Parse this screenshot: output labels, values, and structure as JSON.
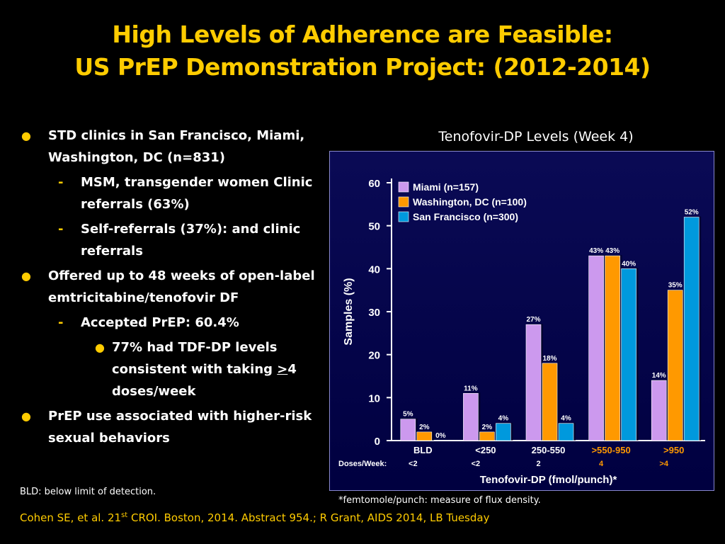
{
  "slide": {
    "title_line1": "High Levels of Adherence are Feasible:",
    "title_line2": "US PrEP Demonstration Project: (2012-2014)",
    "bullets": {
      "b1": "STD clinics in San Francisco, Miami, Washington, DC (n=831)",
      "b1_sub1": "MSM, transgender women Clinic referrals (63%)",
      "b1_sub2": "Self-referrals (37%): and clinic referrals",
      "b2": "Offered up to 48 weeks of open-label emtricitabine/tenofovir DF",
      "b2_sub1": "Accepted PrEP: 60.4%",
      "b2_subsub_pre": "77% had TDF-DP levels consistent with taking ",
      "b2_subsub_underlined": ">",
      "b2_subsub_post": "4 doses/week",
      "b3": "PrEP use associated  with higher-risk sexual behaviors"
    },
    "marker_bullet": "●",
    "marker_dash": "-",
    "bld_note": "BLD: below limit of detection.",
    "flux_note": "*femtomole/punch: measure of flux density.",
    "citation_pre": "Cohen SE, et al. 21",
    "citation_sup": "st",
    "citation_post": " CROI. Boston, 2014. Abstract 954.; R Grant, AIDS 2014, LB Tuesday"
  },
  "chart_data": {
    "type": "bar",
    "title": "Tenofovir-DP Levels (Week 4)",
    "xlabel": "Tenofovir-DP (fmol/punch)*",
    "ylabel": "Samples (%)",
    "ylim": [
      0,
      60
    ],
    "yticks": [
      0,
      10,
      20,
      30,
      40,
      50,
      60
    ],
    "legend_position": "top-left",
    "categories": [
      "BLD",
      "<250",
      "250-550",
      ">550-950",
      ">950"
    ],
    "category_colors": [
      "#ffffff",
      "#ffffff",
      "#ffffff",
      "#ff9900",
      "#ff9900"
    ],
    "doses_label": "Doses/Week:",
    "doses": [
      "<2",
      "<2",
      "2",
      "4",
      ">4"
    ],
    "doses_colors": [
      "#ffffff",
      "#ffffff",
      "#ffffff",
      "#ff9900",
      "#ff9900"
    ],
    "series": [
      {
        "name": "Miami (n=157)",
        "values": [
          5,
          11,
          27,
          43,
          14
        ],
        "labels": [
          "5%",
          "11%",
          "27%",
          "43%",
          "14%"
        ],
        "color": "#cc99ee"
      },
      {
        "name": "Washington, DC (n=100)",
        "values": [
          2,
          2,
          18,
          43,
          35
        ],
        "labels": [
          "2%",
          "2%",
          "18%",
          "43%",
          "35%"
        ],
        "color": "#ff9900"
      },
      {
        "name": "San Francisco (n=300)",
        "values": [
          0,
          4,
          4,
          40,
          52
        ],
        "labels": [
          "0%",
          "4%",
          "4%",
          "40%",
          "52%"
        ],
        "color": "#0099dd"
      }
    ]
  }
}
